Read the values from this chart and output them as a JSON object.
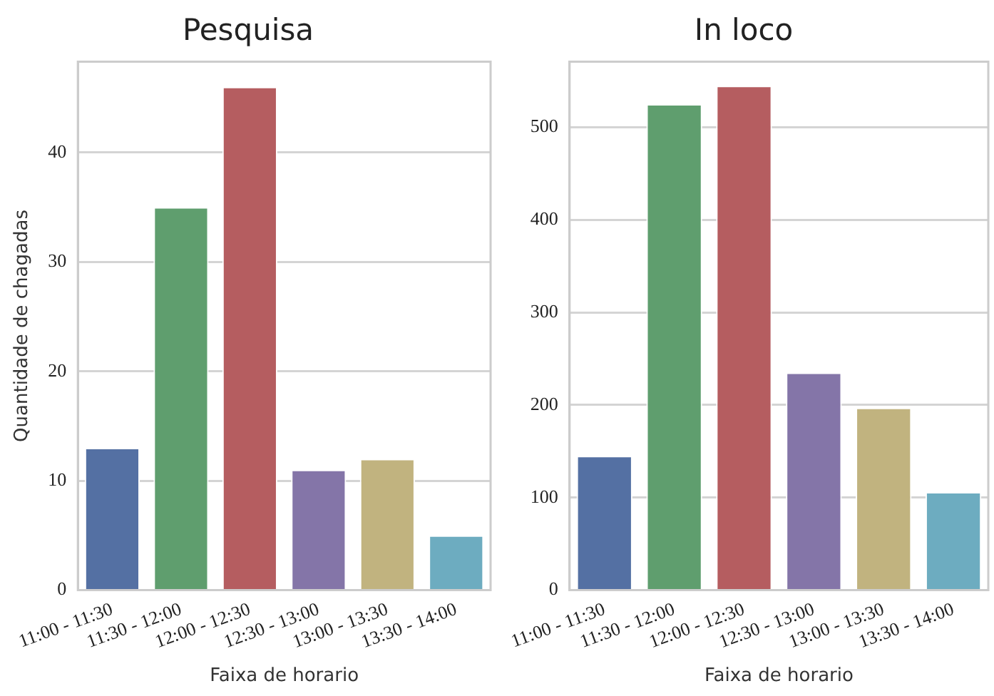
{
  "chart_data": [
    {
      "type": "bar",
      "title": "Pesquisa",
      "xlabel": "Faixa de horario",
      "ylabel": "Quantidade de chagadas",
      "categories": [
        "11:00 - 11:30",
        "11:30 - 12:00",
        "12:00 - 12:30",
        "12:30 - 13:00",
        "13:00 - 13:30",
        "13:30 - 14:00"
      ],
      "values": [
        13,
        35,
        46,
        11,
        12,
        5
      ],
      "colors": [
        "#5470a3",
        "#5f9e6e",
        "#b55d60",
        "#8475a8",
        "#c1b37f",
        "#6dacc0"
      ],
      "ylim": [
        0,
        48.3
      ],
      "yticks": [
        0,
        10,
        20,
        30,
        40
      ],
      "grid": "y"
    },
    {
      "type": "bar",
      "title": "In loco",
      "xlabel": "Faixa de horario",
      "categories": [
        "11:00 - 11:30",
        "11:30 - 12:00",
        "12:00 - 12:30",
        "12:30 - 13:00",
        "13:00 - 13:30",
        "13:30 - 14:00"
      ],
      "values": [
        145,
        525,
        545,
        235,
        197,
        106
      ],
      "colors": [
        "#5470a3",
        "#5f9e6e",
        "#b55d60",
        "#8475a8",
        "#c1b37f",
        "#6dacc0"
      ],
      "ylim": [
        0,
        571
      ],
      "yticks": [
        0,
        100,
        200,
        300,
        400,
        500
      ],
      "grid": "y"
    }
  ]
}
